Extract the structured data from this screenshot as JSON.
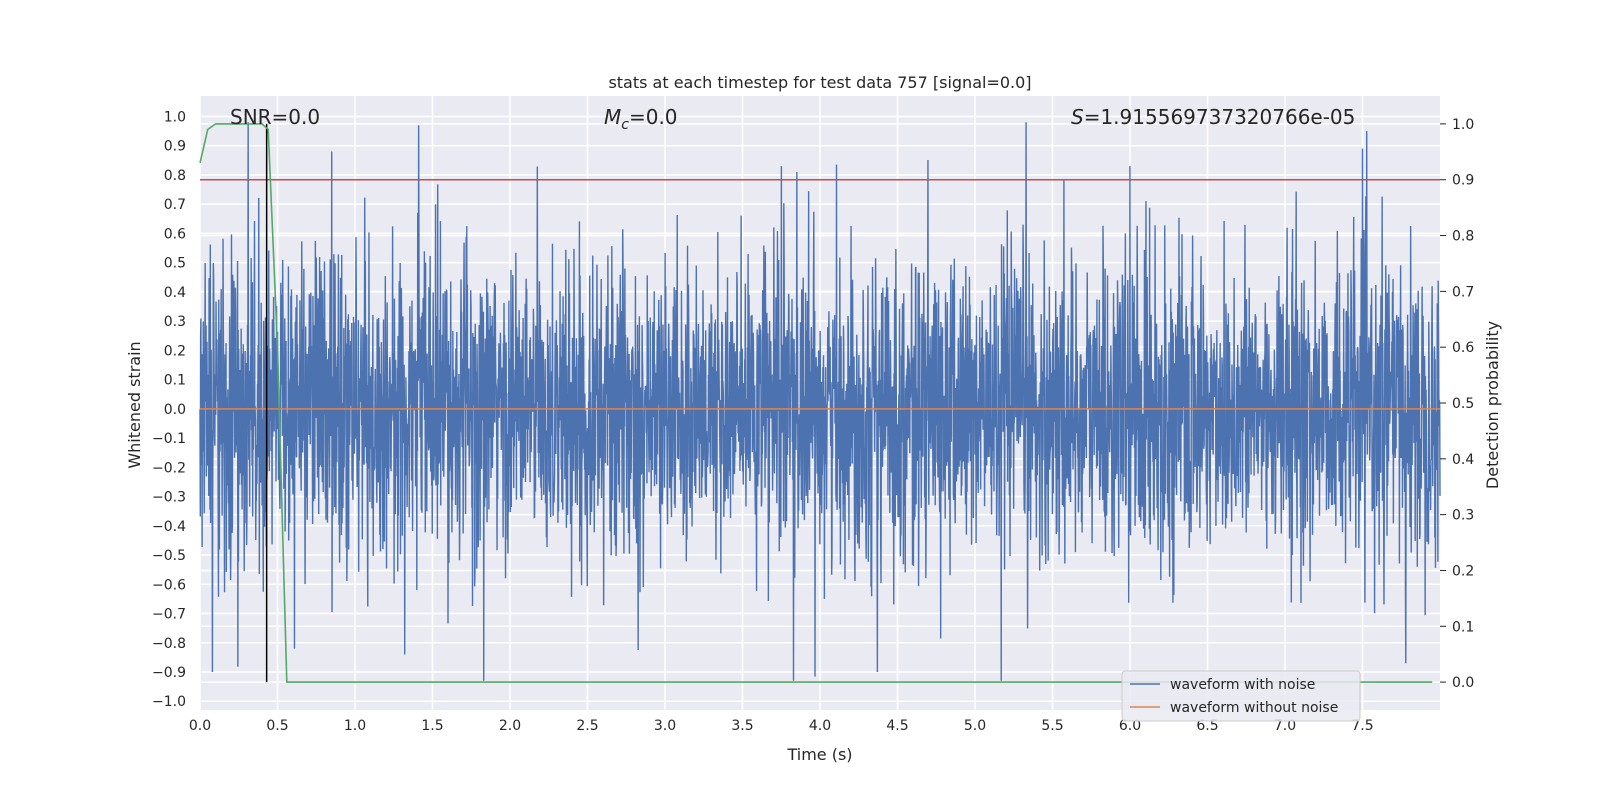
{
  "chart_data": {
    "type": "line",
    "title": "stats at each timestep for test data 757 [signal=0.0]",
    "xlabel": "Time (s)",
    "ylabel": "Whitened strain",
    "y2label": "Detection probability",
    "xlim": [
      0.0,
      8.0
    ],
    "ylim": [
      -1.03,
      1.07
    ],
    "y2lim": [
      -0.05,
      1.05
    ],
    "x_ticks": [
      "0.0",
      "0.5",
      "1.0",
      "1.5",
      "2.0",
      "2.5",
      "3.0",
      "3.5",
      "4.0",
      "4.5",
      "5.0",
      "5.5",
      "6.0",
      "6.5",
      "7.0",
      "7.5"
    ],
    "y_ticks": [
      "1.0",
      "0.9",
      "0.8",
      "0.7",
      "0.6",
      "0.5",
      "0.4",
      "0.3",
      "0.2",
      "0.1",
      "0.0",
      "−0.1",
      "−0.2",
      "−0.3",
      "−0.4",
      "−0.5",
      "−0.6",
      "−0.7",
      "−0.8",
      "−0.9",
      "−1.0"
    ],
    "y2_ticks": [
      "1.0",
      "0.9",
      "0.8",
      "0.7",
      "0.6",
      "0.5",
      "0.4",
      "0.3",
      "0.2",
      "0.1",
      "0.0"
    ],
    "grid": true,
    "legend_position": "bottom-right",
    "annotations": {
      "snr": "SNR=0.0",
      "mc_symbol": "M",
      "mc_sub": "c",
      "mc_value": "=0.0",
      "s_symbol": "S",
      "s_value": "=1.915569737320766e-05"
    },
    "threshold_probability": 0.9,
    "marker_time": 0.43,
    "series": [
      {
        "name": "waveform with noise",
        "color": "#4c72b0",
        "sample_count": 4096,
        "duration": 8.0,
        "noise_level": 0.25,
        "peaks": [
          {
            "t": 0.31,
            "v": 0.98
          },
          {
            "t": 1.41,
            "v": 0.97
          },
          {
            "t": 5.17,
            "v": 0.96
          },
          {
            "t": 5.33,
            "v": 0.98
          },
          {
            "t": 7.5,
            "v": 0.89
          },
          {
            "t": 0.85,
            "v": 0.88
          },
          {
            "t": 3.85,
            "v": 0.81
          },
          {
            "t": 3.75,
            "v": 0.83
          },
          {
            "t": 6.0,
            "v": 0.83
          },
          {
            "t": 0.08,
            "v": -0.9
          },
          {
            "t": 1.83,
            "v": -0.93
          },
          {
            "t": 3.83,
            "v": -0.93
          },
          {
            "t": 4.37,
            "v": -0.9
          },
          {
            "t": 5.17,
            "v": -0.93
          },
          {
            "t": 7.78,
            "v": -0.87
          },
          {
            "t": 0.61,
            "v": -0.82
          },
          {
            "t": 1.32,
            "v": -0.84
          }
        ]
      },
      {
        "name": "waveform without noise",
        "color": "#dd8452",
        "x": [
          0.0,
          8.0
        ],
        "y": [
          0.0,
          0.0
        ]
      },
      {
        "name": "detection probability",
        "color": "#55a868",
        "axis": "right",
        "x": [
          0.0,
          0.05,
          0.1,
          0.2,
          0.3,
          0.4,
          0.44,
          0.5,
          0.56,
          0.6,
          1.0,
          2.0,
          3.0,
          4.0,
          5.0,
          6.0,
          7.0,
          7.95
        ],
        "y": [
          0.93,
          0.99,
          1.0,
          1.0,
          1.0,
          1.0,
          0.99,
          0.6,
          0.0,
          0.0,
          0.0,
          0.0,
          0.0,
          0.0,
          0.0,
          0.0,
          0.0,
          0.0
        ]
      }
    ]
  }
}
